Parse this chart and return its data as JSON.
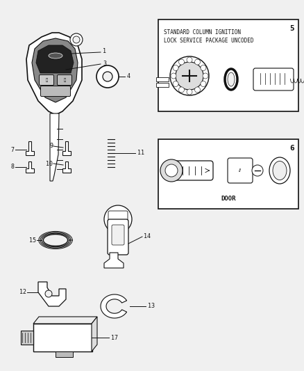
{
  "bg_color": "#f0f0f0",
  "line_color": "#333333",
  "dark_color": "#111111",
  "box5_text": "STANDARD COLUMN IGNITION\nLOCK SERVICE PACKAGE UNCODED",
  "box5_num": "5",
  "box6_num": "6",
  "box6_text": "DOOR",
  "label_fs": 6.0,
  "mono_font": "DejaVu Sans Mono"
}
